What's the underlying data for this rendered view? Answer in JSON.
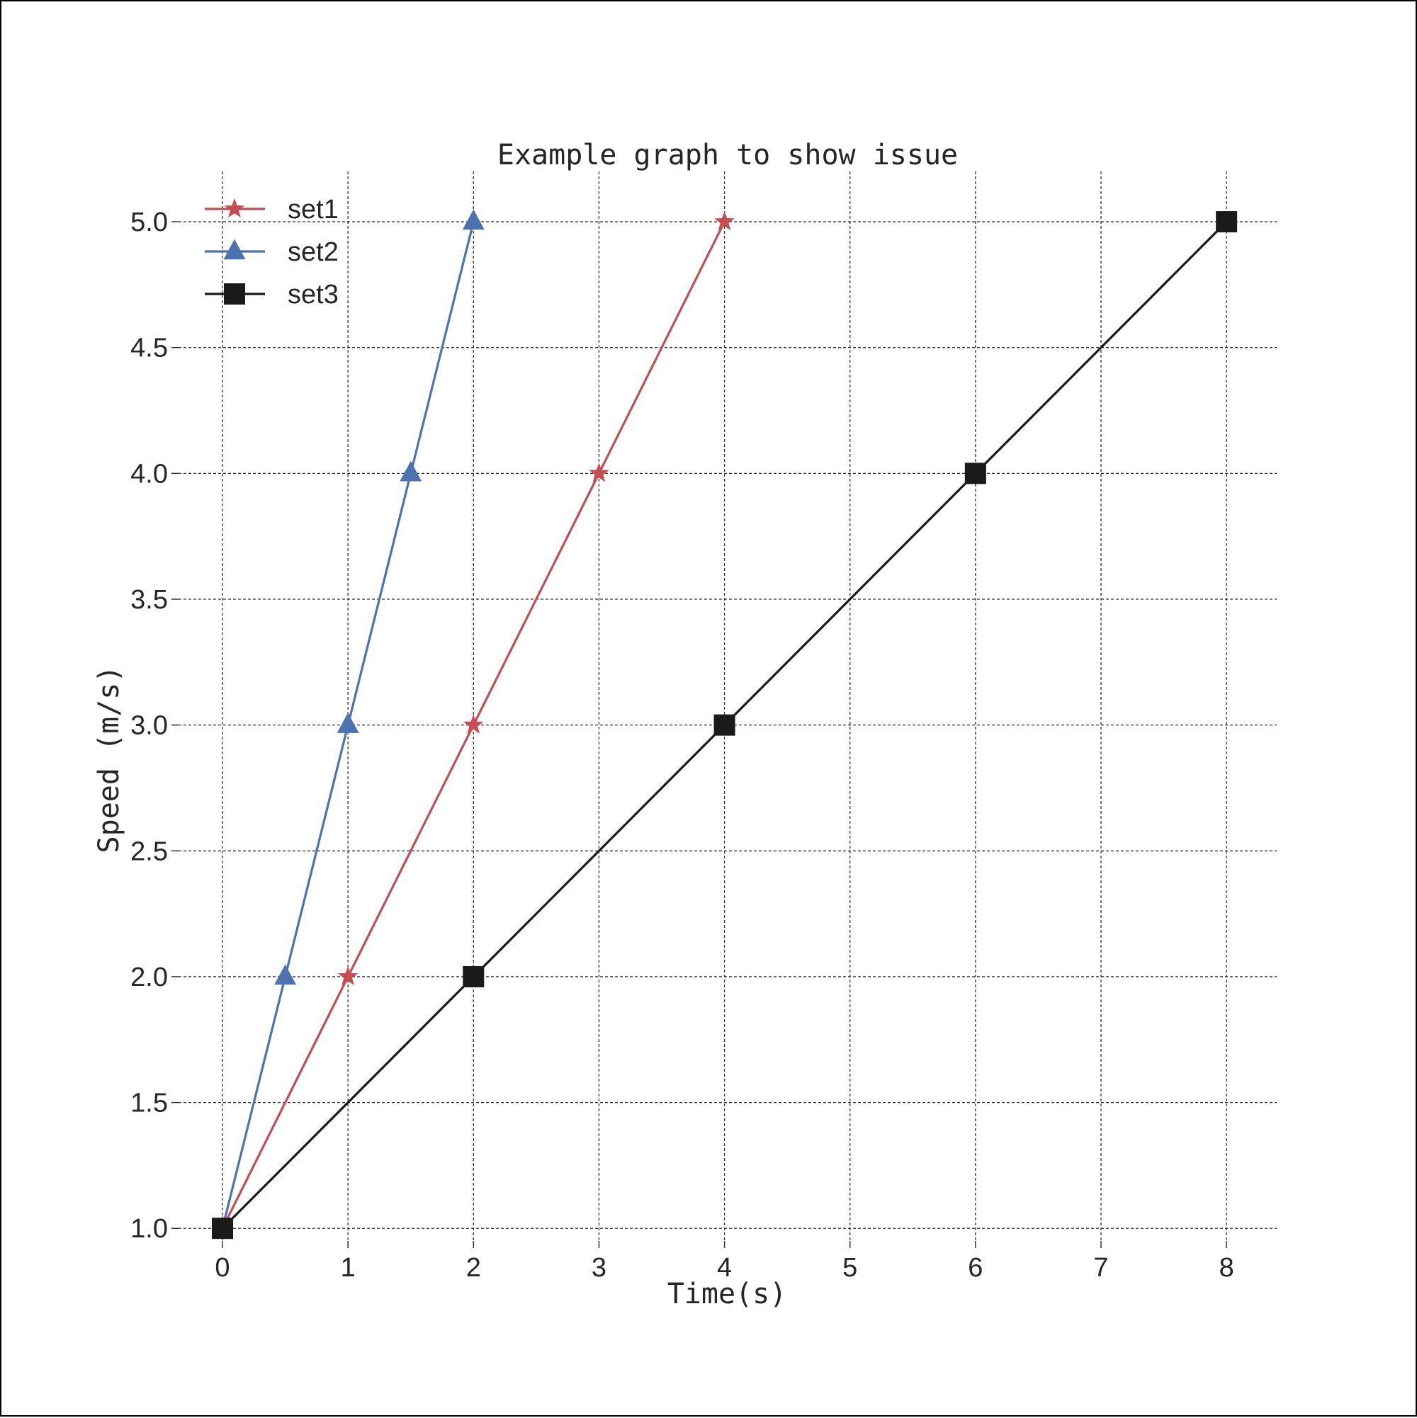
{
  "chart_data": {
    "type": "line",
    "title": "Example graph to show issue",
    "xlabel": "Time(s)",
    "ylabel": "Speed (m/s)",
    "xlim": [
      -0.35,
      8.4
    ],
    "ylim": [
      0.95,
      5.2
    ],
    "xticks": [
      0,
      1,
      2,
      3,
      4,
      5,
      6,
      7,
      8
    ],
    "xtick_labels": [
      "0",
      "1",
      "2",
      "3",
      "4",
      "5",
      "6",
      "7",
      "8"
    ],
    "yticks": [
      1.0,
      1.5,
      2.0,
      2.5,
      3.0,
      3.5,
      4.0,
      4.5,
      5.0
    ],
    "ytick_labels": [
      "1.0",
      "1.5",
      "2.0",
      "2.5",
      "3.0",
      "3.5",
      "4.0",
      "4.5",
      "5.0"
    ],
    "grid": true,
    "legend_position": "top-left",
    "series": [
      {
        "name": "set1",
        "color": "#C44E52",
        "marker": "star",
        "x": [
          0,
          1,
          2,
          3,
          4
        ],
        "y": [
          1,
          2,
          3,
          4,
          5
        ]
      },
      {
        "name": "set2",
        "color": "#4C72B0",
        "marker": "triangle",
        "x": [
          0,
          0.5,
          1,
          1.5,
          2
        ],
        "y": [
          1,
          2,
          3,
          4,
          5
        ]
      },
      {
        "name": "set3",
        "color": "#1A1A1A",
        "marker": "square",
        "x": [
          0,
          2,
          4,
          6,
          8
        ],
        "y": [
          1,
          2,
          3,
          4,
          5
        ]
      }
    ]
  }
}
